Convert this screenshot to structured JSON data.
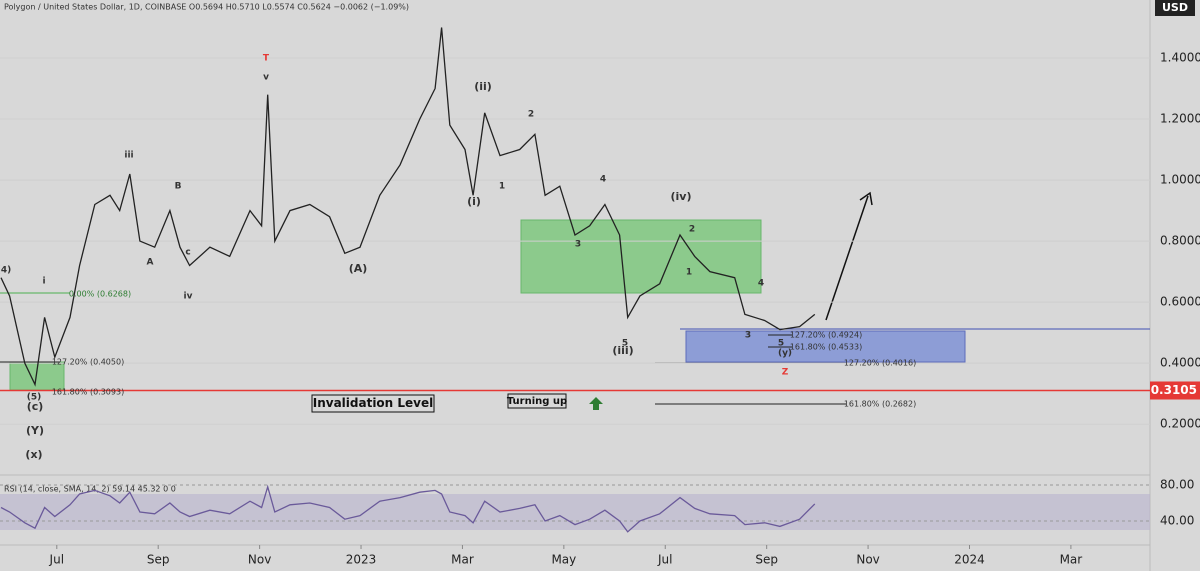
{
  "header": "Polygon / United States Dollar, 1D, COINBASE O0.5694 H0.5710 L0.5574 C0.5624 −0.0062 (−1.09%)",
  "currency": "USD",
  "chart_data": [
    {
      "type": "line",
      "color": "#222222",
      "x": [
        4.9,
        5.07,
        5.37,
        5.57,
        5.76,
        5.96,
        6.26,
        6.45,
        6.75,
        7.05,
        7.24,
        7.44,
        7.64,
        7.93,
        8.23,
        8.43,
        8.62,
        9.02,
        9.41,
        9.81,
        10.04,
        10.16,
        10.3,
        10.6,
        10.99,
        11.38,
        11.68,
        11.98,
        12.37,
        12.77,
        13.16,
        13.46,
        13.59,
        13.75,
        14.05,
        14.21,
        14.44,
        14.74,
        15.13,
        15.43,
        15.63,
        15.92,
        16.22,
        16.51,
        16.81,
        17.1,
        17.26,
        17.5,
        17.89,
        18.29,
        18.58,
        18.88,
        19.37,
        19.57,
        19.96,
        20.26,
        20.65,
        20.95
      ],
      "values": [
        0.68,
        0.62,
        0.4,
        0.33,
        0.55,
        0.42,
        0.55,
        0.72,
        0.92,
        0.95,
        0.9,
        1.02,
        0.8,
        0.78,
        0.9,
        0.78,
        0.72,
        0.78,
        0.75,
        0.9,
        0.85,
        1.28,
        0.8,
        0.9,
        0.92,
        0.88,
        0.76,
        0.78,
        0.95,
        1.05,
        1.2,
        1.3,
        1.5,
        1.18,
        1.1,
        0.95,
        1.22,
        1.08,
        1.1,
        1.15,
        0.95,
        0.98,
        0.82,
        0.85,
        0.92,
        0.82,
        0.55,
        0.62,
        0.66,
        0.82,
        0.75,
        0.7,
        0.68,
        0.56,
        0.54,
        0.51,
        0.52,
        0.56
      ],
      "xlim": [
        4.88,
        27.56
      ],
      "ylim": [
        0.05,
        1.59
      ],
      "xticks": [
        {
          "value": 6,
          "label": "Jul"
        },
        {
          "value": 8,
          "label": "Sep"
        },
        {
          "value": 10,
          "label": "Nov"
        },
        {
          "value": 12,
          "label": "2023"
        },
        {
          "value": 14,
          "label": "Mar"
        },
        {
          "value": 16,
          "label": "May"
        },
        {
          "value": 18,
          "label": "Jul"
        },
        {
          "value": 20,
          "label": "Sep"
        },
        {
          "value": 22,
          "label": "Nov"
        },
        {
          "value": 24,
          "label": "2024"
        },
        {
          "value": 26,
          "label": "Mar"
        }
      ],
      "yticks": [
        {
          "value": 1.4,
          "label": "1.4000"
        },
        {
          "value": 1.2,
          "label": "1.2000"
        },
        {
          "value": 1.0,
          "label": "1.0000"
        },
        {
          "value": 0.8,
          "label": "0.8000"
        },
        {
          "value": 0.6,
          "label": "0.6000"
        },
        {
          "value": 0.4,
          "label": "0.4000"
        },
        {
          "value": 0.2,
          "label": "0.2000"
        }
      ],
      "price_line": 0.3105,
      "annotations": [
        "(4)",
        "i",
        "iii",
        "B",
        "A",
        "c",
        "iv",
        "T",
        "v",
        "(A)",
        "(i)",
        "(ii)",
        "1",
        "2",
        "3",
        "4",
        "5",
        "(iii)",
        "(iv)",
        "2",
        "1",
        "4",
        "3",
        "5",
        "(y)",
        "(5)",
        "(c)",
        "(Y)",
        "(x)",
        "0.00% (0.6268)",
        "127.20% (0.4050)",
        "161.80% (0.3093)",
        "127.20% (0.4924)",
        "161.80% (0.4533)",
        "127.20% (0.4016)",
        "161.80% (0.2682)",
        "Z"
      ],
      "boxed_labels": [
        "Invalidation Level",
        "Turning up"
      ]
    },
    {
      "type": "line",
      "title": "RSI (14, close, SMA, 14, 2) 59.14 45.32 0 0",
      "color": "#6a5a9a",
      "x": [
        4.9,
        5.07,
        5.37,
        5.57,
        5.76,
        5.96,
        6.26,
        6.45,
        6.75,
        7.05,
        7.24,
        7.44,
        7.64,
        7.93,
        8.23,
        8.43,
        8.62,
        9.02,
        9.41,
        9.81,
        10.04,
        10.16,
        10.3,
        10.6,
        10.99,
        11.38,
        11.68,
        11.98,
        12.37,
        12.77,
        13.16,
        13.46,
        13.59,
        13.75,
        14.05,
        14.21,
        14.44,
        14.74,
        15.13,
        15.43,
        15.63,
        15.92,
        16.22,
        16.51,
        16.81,
        17.1,
        17.26,
        17.5,
        17.89,
        18.29,
        18.58,
        18.88,
        19.37,
        19.57,
        19.96,
        20.26,
        20.65,
        20.95
      ],
      "values": [
        55,
        50,
        38,
        32,
        55,
        45,
        58,
        70,
        74,
        68,
        60,
        72,
        50,
        48,
        60,
        50,
        45,
        52,
        48,
        62,
        55,
        78,
        50,
        58,
        60,
        55,
        42,
        46,
        62,
        66,
        72,
        74,
        70,
        50,
        46,
        38,
        62,
        50,
        54,
        58,
        40,
        46,
        36,
        42,
        52,
        40,
        28,
        40,
        48,
        66,
        54,
        48,
        46,
        36,
        38,
        34,
        42,
        59
      ],
      "ylim": [
        13.3,
        91.1
      ],
      "yticks": [
        {
          "value": 80,
          "label": "80.00"
        },
        {
          "value": 40,
          "label": "40.00"
        }
      ]
    }
  ]
}
